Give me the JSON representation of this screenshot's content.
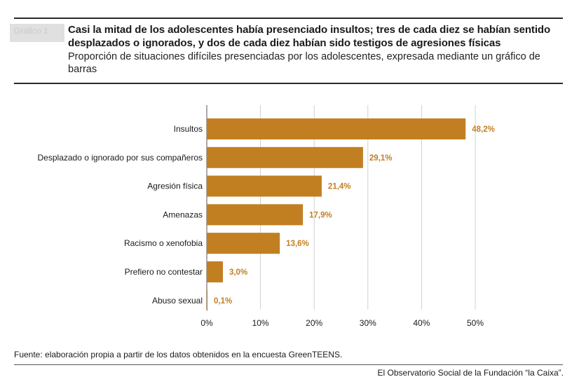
{
  "header": {
    "tag": "Gráfico 1",
    "title": "Casi la mitad de los adolescentes había presenciado insultos; tres de cada diez se habían sentido desplazados o ignorados, y dos de cada diez habían sido testigos de agresiones físicas",
    "subtitle": "Proporción de situaciones difíciles presenciadas por los adolescentes, expresada mediante un gráfico de barras"
  },
  "footer": {
    "source": "Fuente: elaboración propia a partir de los datos obtenidos en la encuesta GreenTEENS.",
    "credit": "El Observatorio Social de la Fundación “la Caixa”."
  },
  "colors": {
    "bar": "#c27f22",
    "label": "#c27f22",
    "grid": "#d0d0d0",
    "axis": "#555555"
  },
  "chart_data": {
    "type": "bar",
    "orientation": "horizontal",
    "categories": [
      "Insultos",
      "Desplazado o ignorado por sus compañeros",
      "Agresión física",
      "Amenazas",
      "Racismo o xenofobia",
      "Prefiero no contestar",
      "Abuso sexual"
    ],
    "values": [
      48.2,
      29.1,
      21.4,
      17.9,
      13.6,
      3.0,
      0.1
    ],
    "value_labels": [
      "48,2%",
      "29,1%",
      "21,4%",
      "17,9%",
      "13,6%",
      "3,0%",
      "0,1%"
    ],
    "xlim": [
      0,
      50
    ],
    "xticks": [
      0,
      10,
      20,
      30,
      40,
      50
    ],
    "xtick_labels": [
      "0%",
      "10%",
      "20%",
      "30%",
      "40%",
      "50%"
    ],
    "grid": true,
    "legend": "none"
  }
}
